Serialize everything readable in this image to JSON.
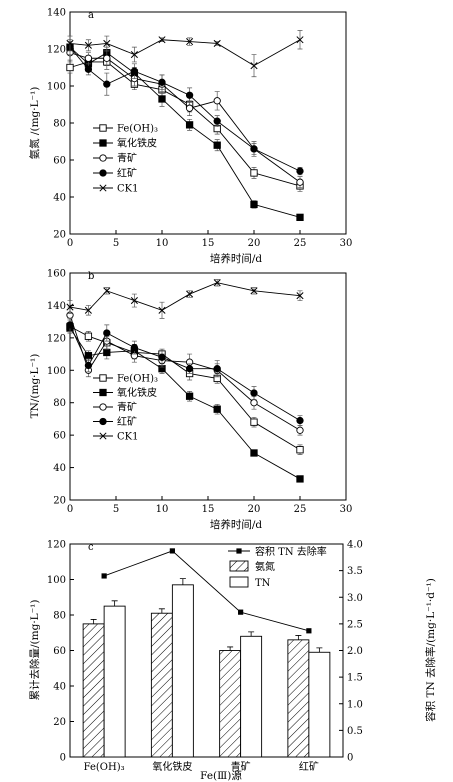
{
  "chart_data": [
    {
      "type": "line",
      "panel_label": "a",
      "xlabel": "培养时间/d",
      "ylabel": "氨氮 /(mg·L⁻¹)",
      "xlim": [
        0,
        30
      ],
      "ylim": [
        20,
        140
      ],
      "xticks": [
        0,
        5,
        10,
        15,
        20,
        25,
        30
      ],
      "yticks": [
        20,
        40,
        60,
        80,
        100,
        120,
        140
      ],
      "legend_position": "lower-left",
      "series": [
        {
          "name": "Fe(OH)₃",
          "marker": "open-square",
          "x": [
            0,
            2,
            4,
            7,
            10,
            13,
            16,
            20,
            25
          ],
          "y": [
            110,
            113,
            113,
            101,
            98,
            90,
            77,
            53,
            46
          ],
          "err": [
            3,
            3,
            4,
            3,
            5,
            4,
            3,
            3,
            3
          ]
        },
        {
          "name": "氧化铁皮",
          "marker": "filled-square",
          "x": [
            0,
            2,
            4,
            7,
            10,
            13,
            16,
            20,
            25
          ],
          "y": [
            121,
            112,
            118,
            107,
            93,
            79,
            68,
            36,
            29
          ],
          "err": [
            3,
            3,
            3,
            3,
            4,
            3,
            3,
            2,
            1
          ]
        },
        {
          "name": "青矿",
          "marker": "open-circle",
          "x": [
            0,
            2,
            4,
            7,
            10,
            13,
            16,
            20,
            25
          ],
          "y": [
            118,
            115,
            115,
            104,
            101,
            88,
            92,
            66,
            48
          ],
          "err": [
            4,
            3,
            4,
            4,
            5,
            4,
            5,
            4,
            3
          ]
        },
        {
          "name": "红矿",
          "marker": "filled-circle",
          "x": [
            0,
            2,
            4,
            7,
            10,
            13,
            16,
            20,
            25
          ],
          "y": [
            121,
            109,
            101,
            108,
            102,
            95,
            81,
            66,
            54
          ],
          "err": [
            4,
            3,
            6,
            4,
            4,
            4,
            3,
            3,
            2
          ]
        },
        {
          "name": "CK1",
          "marker": "cross",
          "x": [
            0,
            2,
            4,
            7,
            10,
            13,
            16,
            20,
            25
          ],
          "y": [
            123,
            122,
            123,
            117,
            125,
            124,
            123,
            111,
            125
          ],
          "err": [
            4,
            3,
            4,
            4,
            1,
            2,
            1,
            6,
            5
          ]
        }
      ]
    },
    {
      "type": "line",
      "panel_label": "b",
      "xlabel": "培养时间/d",
      "ylabel": "TN/(mg·L⁻¹)",
      "xlim": [
        0,
        30
      ],
      "ylim": [
        20,
        160
      ],
      "xticks": [
        0,
        5,
        10,
        15,
        20,
        25,
        30
      ],
      "yticks": [
        20,
        40,
        60,
        80,
        100,
        120,
        140,
        160
      ],
      "legend_position": "lower-left",
      "series": [
        {
          "name": "Fe(OH)₃",
          "marker": "open-square",
          "x": [
            0,
            2,
            4,
            7,
            10,
            13,
            16,
            20,
            25
          ],
          "y": [
            127,
            121,
            117,
            111,
            110,
            98,
            95,
            68,
            51
          ],
          "err": [
            4,
            3,
            4,
            4,
            3,
            4,
            3,
            3,
            3
          ]
        },
        {
          "name": "氧化铁皮",
          "marker": "filled-square",
          "x": [
            0,
            2,
            4,
            7,
            10,
            13,
            16,
            20,
            25
          ],
          "y": [
            126,
            109,
            111,
            112,
            101,
            84,
            76,
            49,
            33
          ],
          "err": [
            3,
            3,
            4,
            4,
            3,
            3,
            3,
            1,
            1
          ]
        },
        {
          "name": "青矿",
          "marker": "open-circle",
          "x": [
            0,
            2,
            4,
            7,
            10,
            13,
            16,
            20,
            25
          ],
          "y": [
            134,
            100,
            118,
            109,
            106,
            105,
            100,
            80,
            63
          ],
          "err": [
            5,
            4,
            5,
            4,
            4,
            5,
            4,
            4,
            3
          ]
        },
        {
          "name": "红矿",
          "marker": "filled-circle",
          "x": [
            0,
            2,
            4,
            7,
            10,
            13,
            16,
            20,
            25
          ],
          "y": [
            128,
            103,
            123,
            114,
            108,
            101,
            101,
            86,
            69
          ],
          "err": [
            4,
            4,
            5,
            4,
            5,
            3,
            5,
            4,
            3
          ]
        },
        {
          "name": "CK1",
          "marker": "cross",
          "x": [
            0,
            2,
            4,
            7,
            10,
            13,
            16,
            20,
            25
          ],
          "y": [
            139,
            137,
            149,
            143,
            137,
            147,
            154,
            149,
            146
          ],
          "err": [
            4,
            3,
            2,
            4,
            5,
            2,
            2,
            2,
            3
          ]
        }
      ]
    },
    {
      "type": "bar",
      "panel_label": "c",
      "xlabel": "Fe(Ⅲ)源",
      "ylabel": "累计去除量/(mg·L⁻¹)",
      "y2label": "容积 TN 去除率/(mg·L⁻¹·d⁻¹)",
      "categories": [
        "Fe(OH)₃",
        "氧化铁皮",
        "青矿",
        "红矿"
      ],
      "ylim": [
        0,
        120
      ],
      "yticks": [
        0,
        20,
        40,
        60,
        80,
        100,
        120
      ],
      "y2lim": [
        0,
        4.0
      ],
      "y2ticks": [
        "0",
        "0.5",
        "1.0",
        "1.5",
        "2.0",
        "2.5",
        "3.0",
        "3.5",
        "4.0"
      ],
      "legend_position": "top-right",
      "series": [
        {
          "name": "氨氮",
          "style": "hatched",
          "values": [
            75,
            81,
            60,
            66
          ],
          "err": [
            2.5,
            2.5,
            2,
            2.5
          ]
        },
        {
          "name": "TN",
          "style": "open",
          "values": [
            85,
            97,
            68,
            59
          ],
          "err": [
            3,
            3.5,
            2.5,
            2.5
          ]
        }
      ],
      "line_series": {
        "name": "容积 TN 去除率",
        "axis": "right",
        "values": [
          3.4,
          3.87,
          2.72,
          2.37
        ]
      }
    }
  ]
}
